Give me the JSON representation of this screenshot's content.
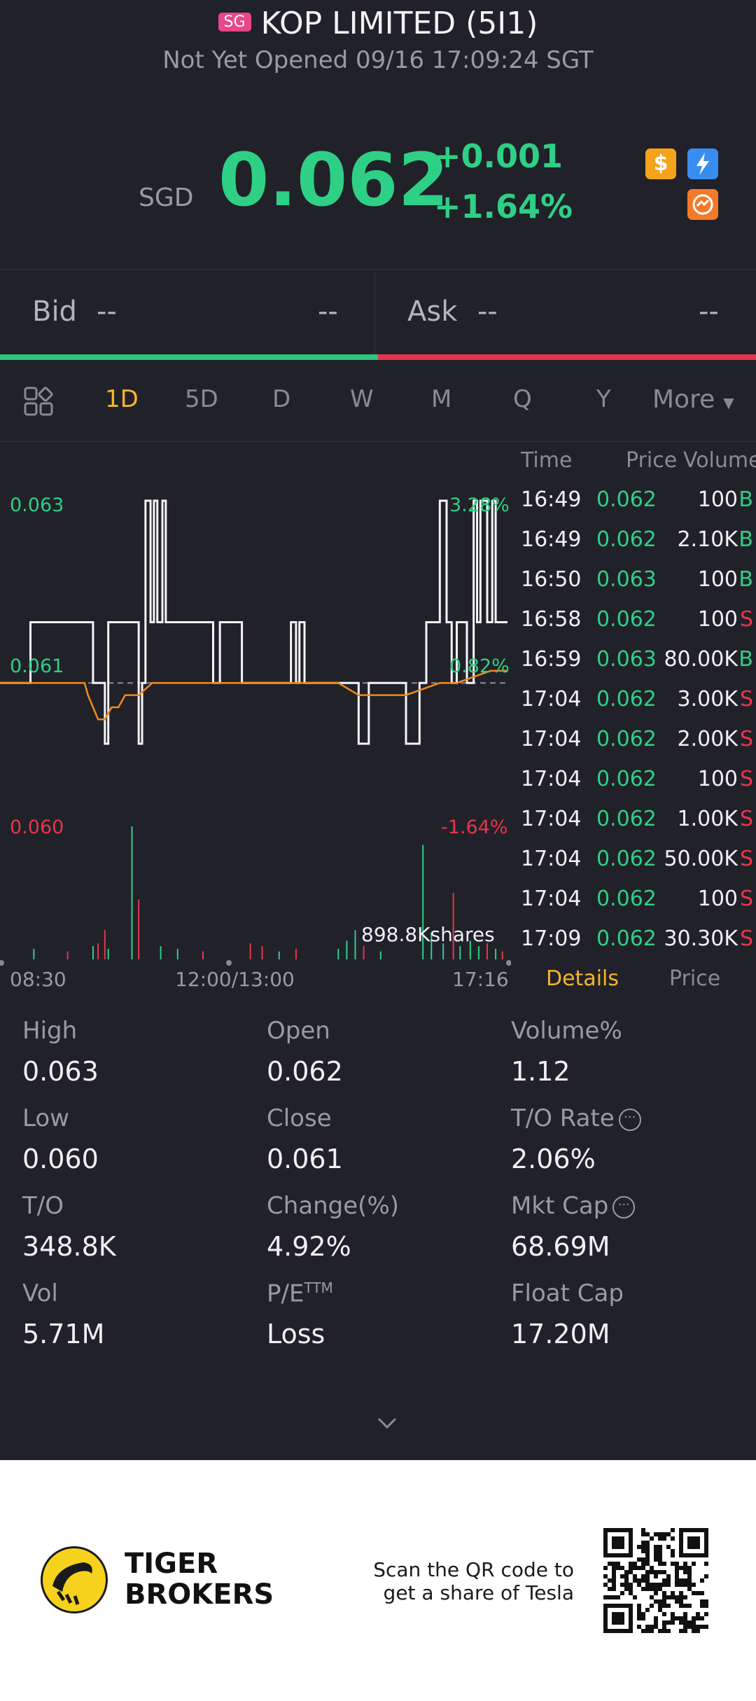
{
  "header": {
    "market_badge": "SG",
    "title": "KOP LIMITED (5I1)",
    "status": "Not Yet Opened 09/16 17:09:24 SGT"
  },
  "quote": {
    "currency": "SGD",
    "price": "0.062",
    "change": "+0.001",
    "change_pct": "+1.64%",
    "icons": [
      "dollar-badge-icon",
      "lightning-icon",
      "exchange-icon"
    ]
  },
  "order_book": {
    "bid_label": "Bid",
    "bid_price": "--",
    "bid_size": "--",
    "ask_label": "Ask",
    "ask_price": "--",
    "ask_size": "--"
  },
  "tabs": [
    "1D",
    "5D",
    "D",
    "W",
    "M",
    "Q",
    "Y",
    "More"
  ],
  "active_tab": "1D",
  "chart_data": {
    "type": "line",
    "y_labels": {
      "top": "0.063",
      "mid": "0.061",
      "bottom": "0.060"
    },
    "pct_labels": {
      "top": "3.28%",
      "mid": "0.82%",
      "bottom": "-1.64%"
    },
    "x_labels": [
      "08:30",
      "12:00/13:00",
      "17:16"
    ],
    "volume_label": "898.8Kshares",
    "ylim": [
      0.06,
      0.063
    ],
    "prev_close": 0.061,
    "series": [
      {
        "x": [
          0,
          18,
          18,
          55,
          55,
          62,
          62,
          64,
          64,
          82,
          82,
          84,
          84,
          86,
          86,
          89,
          89,
          91,
          91,
          93,
          93,
          96,
          96,
          98,
          98,
          104,
          104,
          107,
          107,
          110,
          110,
          126,
          126,
          130,
          130,
          143,
          143,
          149,
          149,
          172,
          172,
          175,
          175,
          177,
          177,
          180,
          180,
          193,
          193,
          200,
          200,
          212,
          212,
          218,
          218,
          240,
          240,
          248,
          248,
          252,
          252,
          260,
          260,
          264,
          264,
          267,
          267,
          270,
          270,
          276,
          276,
          280,
          280,
          282,
          282,
          284,
          284,
          288,
          288,
          291,
          291,
          293,
          293,
          295,
          295,
          300
        ],
        "y": [
          0.0613,
          0.0613,
          0.0618,
          0.0618,
          0.0613,
          0.0613,
          0.0608,
          0.0608,
          0.0618,
          0.0618,
          0.0608,
          0.0608,
          0.0613,
          0.0613,
          0.0628,
          0.0628,
          0.0618,
          0.0618,
          0.0628,
          0.0628,
          0.0618,
          0.0618,
          0.0628,
          0.0628,
          0.0618,
          0.0618,
          0.0618,
          0.0618,
          0.0618,
          0.0618,
          0.0618,
          0.0618,
          0.0613,
          0.0613,
          0.0618,
          0.0618,
          0.0613,
          0.0613,
          0.0613,
          0.0613,
          0.0618,
          0.0618,
          0.0613,
          0.0613,
          0.0618,
          0.0618,
          0.0613,
          0.0613,
          0.0613,
          0.0613,
          0.0613,
          0.0613,
          0.0608,
          0.0608,
          0.0613,
          0.0613,
          0.0608,
          0.0608,
          0.0613,
          0.0613,
          0.0618,
          0.0618,
          0.0628,
          0.0628,
          0.0618,
          0.0618,
          0.0613,
          0.0613,
          0.0618,
          0.0618,
          0.0613,
          0.0613,
          0.0628,
          0.0628,
          0.0618,
          0.0618,
          0.0628,
          0.0628,
          0.0618,
          0.0618,
          0.0628,
          0.0628,
          0.0618,
          0.0618,
          0.0618,
          0.0618
        ]
      },
      {
        "x": [
          0,
          50,
          52,
          58,
          62,
          66,
          70,
          74,
          78,
          82,
          86,
          90,
          100,
          150,
          200,
          212,
          220,
          240,
          250,
          260,
          270,
          280,
          290,
          300
        ],
        "y": [
          0.0613,
          0.0613,
          0.0612,
          0.061,
          0.061,
          0.0611,
          0.0611,
          0.0612,
          0.0612,
          0.0612,
          0.06125,
          0.0613,
          0.0613,
          0.0613,
          0.0613,
          0.0612,
          0.0612,
          0.0612,
          0.06125,
          0.0613,
          0.0613,
          0.06135,
          0.0614,
          0.0614
        ]
      }
    ],
    "volumes": [
      {
        "x": 20,
        "v": 0.08,
        "c": "g"
      },
      {
        "x": 40,
        "v": 0.06,
        "c": "r"
      },
      {
        "x": 55,
        "v": 0.1,
        "c": "g"
      },
      {
        "x": 58,
        "v": 0.12,
        "c": "r"
      },
      {
        "x": 62,
        "v": 0.22,
        "c": "r"
      },
      {
        "x": 64,
        "v": 0.08,
        "c": "g"
      },
      {
        "x": 78,
        "v": 1.0,
        "c": "g"
      },
      {
        "x": 82,
        "v": 0.45,
        "c": "r"
      },
      {
        "x": 95,
        "v": 0.1,
        "c": "g"
      },
      {
        "x": 105,
        "v": 0.08,
        "c": "g"
      },
      {
        "x": 120,
        "v": 0.06,
        "c": "r"
      },
      {
        "x": 148,
        "v": 0.12,
        "c": "r"
      },
      {
        "x": 155,
        "v": 0.1,
        "c": "r"
      },
      {
        "x": 165,
        "v": 0.06,
        "c": "g"
      },
      {
        "x": 175,
        "v": 0.08,
        "c": "r"
      },
      {
        "x": 200,
        "v": 0.08,
        "c": "g"
      },
      {
        "x": 205,
        "v": 0.14,
        "c": "g"
      },
      {
        "x": 210,
        "v": 0.22,
        "c": "g"
      },
      {
        "x": 215,
        "v": 0.1,
        "c": "r"
      },
      {
        "x": 225,
        "v": 0.06,
        "c": "g"
      },
      {
        "x": 250,
        "v": 0.86,
        "c": "g"
      },
      {
        "x": 255,
        "v": 0.2,
        "c": "g"
      },
      {
        "x": 262,
        "v": 0.12,
        "c": "g"
      },
      {
        "x": 268,
        "v": 0.5,
        "c": "r"
      },
      {
        "x": 272,
        "v": 0.1,
        "c": "g"
      },
      {
        "x": 278,
        "v": 0.14,
        "c": "g"
      },
      {
        "x": 283,
        "v": 0.1,
        "c": "g"
      },
      {
        "x": 288,
        "v": 0.12,
        "c": "r"
      },
      {
        "x": 293,
        "v": 0.08,
        "c": "g"
      },
      {
        "x": 297,
        "v": 0.06,
        "c": "r"
      }
    ]
  },
  "trades": {
    "headers": {
      "time": "Time",
      "price": "Price",
      "volume": "Volume"
    },
    "rows": [
      {
        "time": "16:49",
        "price": "0.062",
        "volume": "100",
        "side": "B"
      },
      {
        "time": "16:49",
        "price": "0.062",
        "volume": "2.10K",
        "side": "B"
      },
      {
        "time": "16:50",
        "price": "0.063",
        "volume": "100",
        "side": "B"
      },
      {
        "time": "16:58",
        "price": "0.062",
        "volume": "100",
        "side": "S"
      },
      {
        "time": "16:59",
        "price": "0.063",
        "volume": "80.00K",
        "side": "B"
      },
      {
        "time": "17:04",
        "price": "0.062",
        "volume": "3.00K",
        "side": "S"
      },
      {
        "time": "17:04",
        "price": "0.062",
        "volume": "2.00K",
        "side": "S"
      },
      {
        "time": "17:04",
        "price": "0.062",
        "volume": "100",
        "side": "S"
      },
      {
        "time": "17:04",
        "price": "0.062",
        "volume": "1.00K",
        "side": "S"
      },
      {
        "time": "17:04",
        "price": "0.062",
        "volume": "50.00K",
        "side": "S"
      },
      {
        "time": "17:04",
        "price": "0.062",
        "volume": "100",
        "side": "S"
      },
      {
        "time": "17:09",
        "price": "0.062",
        "volume": "30.30K",
        "side": "S"
      }
    ],
    "tab_details": "Details",
    "tab_price": "Price"
  },
  "stats": [
    {
      "label": "High",
      "value": "0.063"
    },
    {
      "label": "Open",
      "value": "0.062"
    },
    {
      "label": "Volume%",
      "value": "1.12"
    },
    {
      "label": "Low",
      "value": "0.060"
    },
    {
      "label": "Close",
      "value": "0.061"
    },
    {
      "label": "T/O Rate",
      "value": "2.06%"
    },
    {
      "label": "T/O",
      "value": "348.8K"
    },
    {
      "label": "Change(%)",
      "value": "4.92%"
    },
    {
      "label": "Mkt Cap",
      "value": "68.69M"
    },
    {
      "label": "Vol",
      "value": "5.71M"
    },
    {
      "label": "P/E",
      "sup": "TTM",
      "value": "Loss"
    },
    {
      "label": "Float Cap",
      "value": "17.20M"
    }
  ],
  "footer": {
    "brand_line1": "TIGER",
    "brand_line2": "BROKERS",
    "scan_line1": "Scan the QR code to",
    "scan_line2": "get a share of Tesla"
  },
  "colors": {
    "green": "#2ed085",
    "red": "#e7364a",
    "gold": "#f4b52a",
    "bg": "#212129"
  }
}
